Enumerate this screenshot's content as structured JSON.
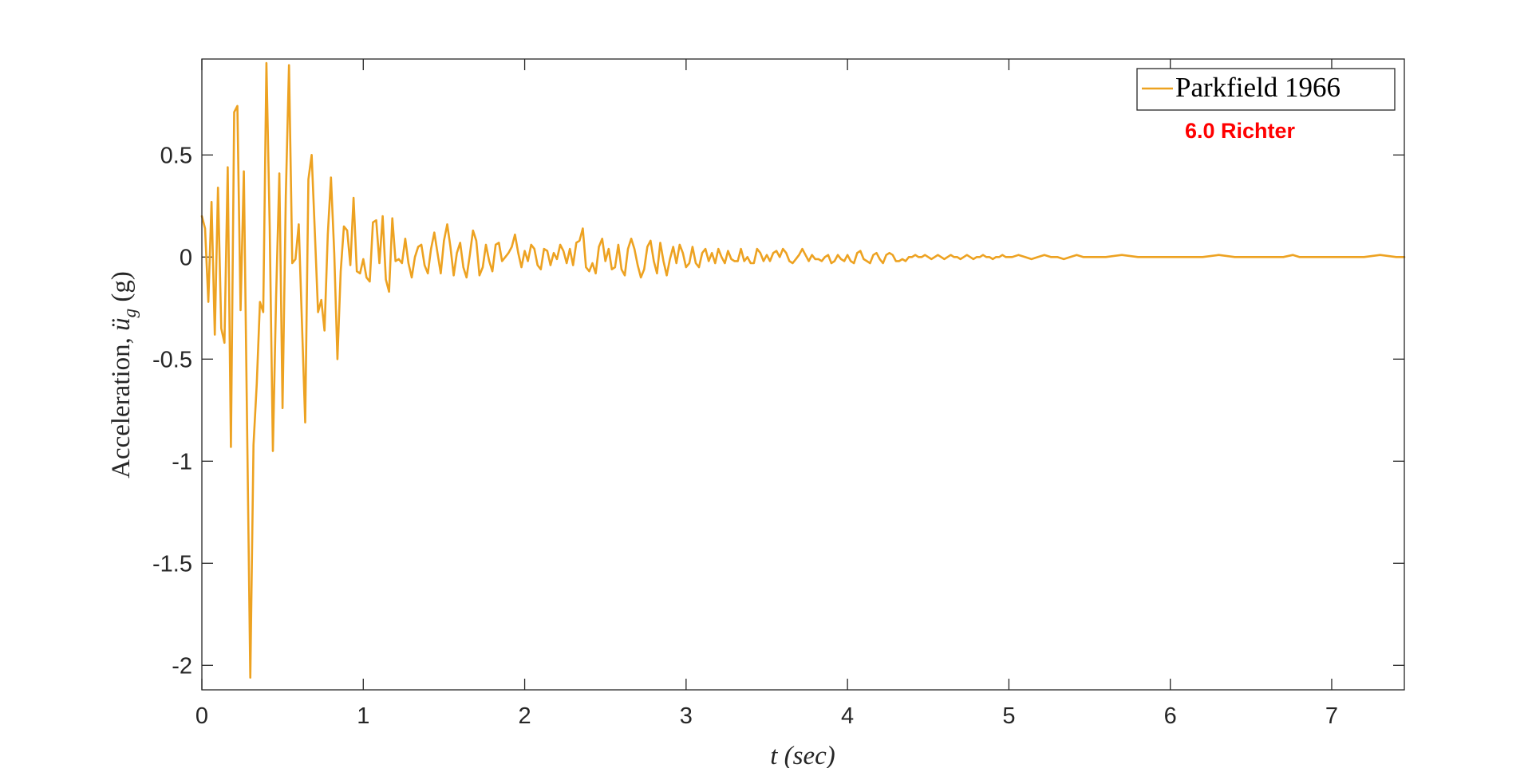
{
  "chart_data": {
    "type": "line",
    "title": "",
    "xlabel": "t (sec)",
    "ylabel_main": "Acceleration, ",
    "ylabel_symbol": "ü",
    "ylabel_subscript": "g",
    "ylabel_unit": " (g)",
    "xlim": [
      0,
      7.45
    ],
    "ylim": [
      -2.12,
      0.97
    ],
    "xticks": [
      0,
      1,
      2,
      3,
      4,
      5,
      6,
      7
    ],
    "yticks": [
      -2,
      -1.5,
      -1,
      -0.5,
      0,
      0.5
    ],
    "ytick_labels": [
      "-2",
      "-1.5",
      "-1",
      "-0.5",
      "0",
      "0.5"
    ],
    "grid": false,
    "legend_position": "top-right",
    "series": [
      {
        "name": "Parkfield 1966",
        "color": "#EDA221",
        "points": [
          [
            0.0,
            0.2
          ],
          [
            0.02,
            0.14
          ],
          [
            0.04,
            -0.22
          ],
          [
            0.06,
            0.27
          ],
          [
            0.08,
            -0.38
          ],
          [
            0.1,
            0.34
          ],
          [
            0.12,
            -0.35
          ],
          [
            0.14,
            -0.42
          ],
          [
            0.16,
            0.44
          ],
          [
            0.18,
            -0.93
          ],
          [
            0.2,
            0.71
          ],
          [
            0.22,
            0.74
          ],
          [
            0.24,
            -0.26
          ],
          [
            0.26,
            0.42
          ],
          [
            0.3,
            -2.06
          ],
          [
            0.32,
            -0.92
          ],
          [
            0.34,
            -0.62
          ],
          [
            0.36,
            -0.22
          ],
          [
            0.38,
            -0.27
          ],
          [
            0.4,
            0.95
          ],
          [
            0.42,
            0.15
          ],
          [
            0.44,
            -0.95
          ],
          [
            0.46,
            -0.2
          ],
          [
            0.48,
            0.41
          ],
          [
            0.5,
            -0.74
          ],
          [
            0.52,
            0.3
          ],
          [
            0.54,
            0.94
          ],
          [
            0.56,
            -0.03
          ],
          [
            0.58,
            -0.01
          ],
          [
            0.6,
            0.16
          ],
          [
            0.64,
            -0.81
          ],
          [
            0.66,
            0.38
          ],
          [
            0.68,
            0.5
          ],
          [
            0.7,
            0.12
          ],
          [
            0.72,
            -0.27
          ],
          [
            0.74,
            -0.21
          ],
          [
            0.76,
            -0.36
          ],
          [
            0.78,
            0.11
          ],
          [
            0.8,
            0.39
          ],
          [
            0.82,
            0.02
          ],
          [
            0.84,
            -0.5
          ],
          [
            0.86,
            -0.07
          ],
          [
            0.88,
            0.15
          ],
          [
            0.9,
            0.13
          ],
          [
            0.92,
            -0.04
          ],
          [
            0.94,
            0.29
          ],
          [
            0.96,
            -0.07
          ],
          [
            0.98,
            -0.08
          ],
          [
            1.0,
            -0.01
          ],
          [
            1.02,
            -0.1
          ],
          [
            1.04,
            -0.12
          ],
          [
            1.06,
            0.17
          ],
          [
            1.08,
            0.18
          ],
          [
            1.1,
            -0.03
          ],
          [
            1.12,
            0.2
          ],
          [
            1.14,
            -0.11
          ],
          [
            1.16,
            -0.17
          ],
          [
            1.18,
            0.19
          ],
          [
            1.2,
            -0.02
          ],
          [
            1.22,
            -0.01
          ],
          [
            1.24,
            -0.03
          ],
          [
            1.26,
            0.09
          ],
          [
            1.28,
            -0.03
          ],
          [
            1.3,
            -0.1
          ],
          [
            1.32,
            0.0
          ],
          [
            1.34,
            0.05
          ],
          [
            1.36,
            0.06
          ],
          [
            1.38,
            -0.04
          ],
          [
            1.4,
            -0.08
          ],
          [
            1.42,
            0.04
          ],
          [
            1.44,
            0.12
          ],
          [
            1.46,
            0.02
          ],
          [
            1.48,
            -0.08
          ],
          [
            1.5,
            0.08
          ],
          [
            1.52,
            0.16
          ],
          [
            1.54,
            0.05
          ],
          [
            1.56,
            -0.09
          ],
          [
            1.58,
            0.02
          ],
          [
            1.6,
            0.07
          ],
          [
            1.62,
            -0.05
          ],
          [
            1.64,
            -0.1
          ],
          [
            1.66,
            0.01
          ],
          [
            1.68,
            0.13
          ],
          [
            1.7,
            0.08
          ],
          [
            1.72,
            -0.09
          ],
          [
            1.74,
            -0.05
          ],
          [
            1.76,
            0.06
          ],
          [
            1.78,
            -0.02
          ],
          [
            1.8,
            -0.07
          ],
          [
            1.82,
            0.06
          ],
          [
            1.84,
            0.07
          ],
          [
            1.86,
            -0.02
          ],
          [
            1.88,
            0.0
          ],
          [
            1.9,
            0.02
          ],
          [
            1.92,
            0.05
          ],
          [
            1.94,
            0.11
          ],
          [
            1.96,
            0.02
          ],
          [
            1.98,
            -0.05
          ],
          [
            2.0,
            0.03
          ],
          [
            2.02,
            -0.02
          ],
          [
            2.04,
            0.06
          ],
          [
            2.06,
            0.04
          ],
          [
            2.08,
            -0.04
          ],
          [
            2.1,
            -0.06
          ],
          [
            2.12,
            0.04
          ],
          [
            2.14,
            0.03
          ],
          [
            2.16,
            -0.04
          ],
          [
            2.18,
            0.02
          ],
          [
            2.2,
            -0.01
          ],
          [
            2.22,
            0.06
          ],
          [
            2.24,
            0.03
          ],
          [
            2.26,
            -0.03
          ],
          [
            2.28,
            0.04
          ],
          [
            2.3,
            -0.04
          ],
          [
            2.32,
            0.07
          ],
          [
            2.34,
            0.08
          ],
          [
            2.36,
            0.14
          ],
          [
            2.38,
            -0.05
          ],
          [
            2.4,
            -0.07
          ],
          [
            2.42,
            -0.03
          ],
          [
            2.44,
            -0.08
          ],
          [
            2.46,
            0.05
          ],
          [
            2.48,
            0.09
          ],
          [
            2.5,
            -0.02
          ],
          [
            2.52,
            0.04
          ],
          [
            2.54,
            -0.06
          ],
          [
            2.56,
            -0.05
          ],
          [
            2.58,
            0.06
          ],
          [
            2.6,
            -0.06
          ],
          [
            2.62,
            -0.09
          ],
          [
            2.64,
            0.04
          ],
          [
            2.66,
            0.09
          ],
          [
            2.68,
            0.04
          ],
          [
            2.7,
            -0.04
          ],
          [
            2.72,
            -0.1
          ],
          [
            2.74,
            -0.06
          ],
          [
            2.76,
            0.05
          ],
          [
            2.78,
            0.08
          ],
          [
            2.8,
            -0.02
          ],
          [
            2.82,
            -0.08
          ],
          [
            2.84,
            0.07
          ],
          [
            2.86,
            -0.02
          ],
          [
            2.88,
            -0.09
          ],
          [
            2.9,
            -0.01
          ],
          [
            2.92,
            0.05
          ],
          [
            2.94,
            -0.03
          ],
          [
            2.96,
            0.06
          ],
          [
            2.98,
            0.02
          ],
          [
            3.0,
            -0.05
          ],
          [
            3.02,
            -0.03
          ],
          [
            3.04,
            0.05
          ],
          [
            3.06,
            -0.03
          ],
          [
            3.08,
            -0.05
          ],
          [
            3.1,
            0.02
          ],
          [
            3.12,
            0.04
          ],
          [
            3.14,
            -0.02
          ],
          [
            3.16,
            0.02
          ],
          [
            3.18,
            -0.03
          ],
          [
            3.2,
            0.04
          ],
          [
            3.22,
            0.0
          ],
          [
            3.24,
            -0.03
          ],
          [
            3.26,
            0.03
          ],
          [
            3.28,
            -0.01
          ],
          [
            3.3,
            -0.02
          ],
          [
            3.32,
            -0.02
          ],
          [
            3.34,
            0.04
          ],
          [
            3.36,
            -0.02
          ],
          [
            3.38,
            0.0
          ],
          [
            3.4,
            -0.03
          ],
          [
            3.42,
            -0.03
          ],
          [
            3.44,
            0.04
          ],
          [
            3.46,
            0.02
          ],
          [
            3.48,
            -0.02
          ],
          [
            3.5,
            0.01
          ],
          [
            3.52,
            -0.02
          ],
          [
            3.54,
            0.02
          ],
          [
            3.56,
            0.03
          ],
          [
            3.58,
            0.0
          ],
          [
            3.6,
            0.04
          ],
          [
            3.62,
            0.02
          ],
          [
            3.64,
            -0.02
          ],
          [
            3.66,
            -0.03
          ],
          [
            3.68,
            -0.01
          ],
          [
            3.7,
            0.01
          ],
          [
            3.72,
            0.04
          ],
          [
            3.74,
            0.01
          ],
          [
            3.76,
            -0.02
          ],
          [
            3.78,
            0.01
          ],
          [
            3.8,
            -0.01
          ],
          [
            3.82,
            -0.01
          ],
          [
            3.84,
            -0.02
          ],
          [
            3.86,
            0.0
          ],
          [
            3.88,
            0.01
          ],
          [
            3.9,
            -0.03
          ],
          [
            3.92,
            -0.02
          ],
          [
            3.94,
            0.01
          ],
          [
            3.96,
            -0.01
          ],
          [
            3.98,
            -0.02
          ],
          [
            4.0,
            0.01
          ],
          [
            4.02,
            -0.02
          ],
          [
            4.04,
            -0.03
          ],
          [
            4.06,
            0.02
          ],
          [
            4.08,
            0.03
          ],
          [
            4.1,
            -0.01
          ],
          [
            4.12,
            -0.02
          ],
          [
            4.14,
            -0.03
          ],
          [
            4.16,
            0.01
          ],
          [
            4.18,
            0.02
          ],
          [
            4.2,
            -0.01
          ],
          [
            4.22,
            -0.03
          ],
          [
            4.24,
            0.01
          ],
          [
            4.26,
            0.02
          ],
          [
            4.28,
            0.01
          ],
          [
            4.3,
            -0.02
          ],
          [
            4.32,
            -0.02
          ],
          [
            4.34,
            -0.01
          ],
          [
            4.36,
            -0.02
          ],
          [
            4.38,
            0.0
          ],
          [
            4.4,
            0.0
          ],
          [
            4.42,
            0.01
          ],
          [
            4.44,
            0.0
          ],
          [
            4.46,
            0.0
          ],
          [
            4.48,
            0.01
          ],
          [
            4.5,
            0.0
          ],
          [
            4.52,
            -0.01
          ],
          [
            4.54,
            0.0
          ],
          [
            4.56,
            0.01
          ],
          [
            4.58,
            0.0
          ],
          [
            4.6,
            -0.01
          ],
          [
            4.62,
            0.0
          ],
          [
            4.64,
            0.01
          ],
          [
            4.66,
            0.0
          ],
          [
            4.68,
            0.0
          ],
          [
            4.7,
            -0.01
          ],
          [
            4.72,
            0.0
          ],
          [
            4.74,
            0.01
          ],
          [
            4.76,
            0.0
          ],
          [
            4.78,
            -0.01
          ],
          [
            4.8,
            0.0
          ],
          [
            4.82,
            0.0
          ],
          [
            4.84,
            0.01
          ],
          [
            4.86,
            0.0
          ],
          [
            4.88,
            0.0
          ],
          [
            4.9,
            -0.01
          ],
          [
            4.92,
            0.0
          ],
          [
            4.94,
            0.0
          ],
          [
            4.96,
            0.01
          ],
          [
            4.98,
            0.0
          ],
          [
            5.0,
            0.0
          ],
          [
            5.02,
            0.0
          ],
          [
            5.06,
            0.01
          ],
          [
            5.1,
            0.0
          ],
          [
            5.14,
            -0.01
          ],
          [
            5.18,
            0.0
          ],
          [
            5.22,
            0.01
          ],
          [
            5.26,
            0.0
          ],
          [
            5.3,
            0.0
          ],
          [
            5.34,
            -0.01
          ],
          [
            5.38,
            0.0
          ],
          [
            5.42,
            0.01
          ],
          [
            5.46,
            0.0
          ],
          [
            5.5,
            0.0
          ],
          [
            5.6,
            0.0
          ],
          [
            5.7,
            0.01
          ],
          [
            5.8,
            0.0
          ],
          [
            5.9,
            0.0
          ],
          [
            6.0,
            0.0
          ],
          [
            6.1,
            0.0
          ],
          [
            6.2,
            0.0
          ],
          [
            6.3,
            0.01
          ],
          [
            6.4,
            0.0
          ],
          [
            6.5,
            0.0
          ],
          [
            6.6,
            0.0
          ],
          [
            6.7,
            0.0
          ],
          [
            6.76,
            0.01
          ],
          [
            6.8,
            0.0
          ],
          [
            6.9,
            0.0
          ],
          [
            7.0,
            0.0
          ],
          [
            7.1,
            0.0
          ],
          [
            7.2,
            0.0
          ],
          [
            7.3,
            0.01
          ],
          [
            7.4,
            0.0
          ],
          [
            7.45,
            0.0
          ]
        ]
      }
    ],
    "legend": {
      "label": "Parkfield 1966"
    },
    "annotation": {
      "text": "6.0 Richter",
      "color": "#FF0000"
    },
    "colors": {
      "axis": "#262626",
      "legend_border": "#262626",
      "background": "#FFFFFF"
    }
  }
}
